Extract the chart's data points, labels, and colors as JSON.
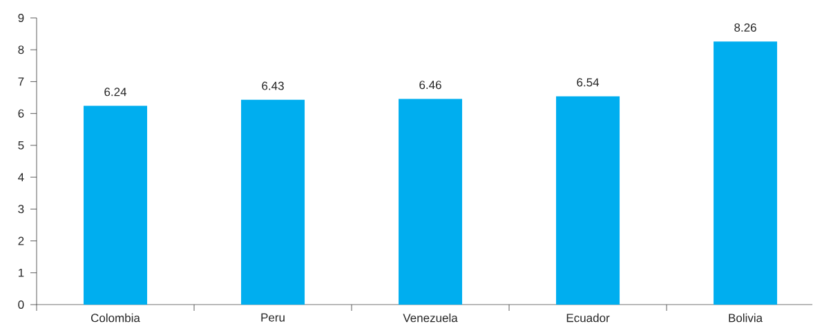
{
  "chart_data": {
    "type": "bar",
    "categories": [
      "Colombia",
      "Peru",
      "Venezuela",
      "Ecuador",
      "Bolivia"
    ],
    "values": [
      6.24,
      6.43,
      6.46,
      6.54,
      8.26
    ],
    "color": "#00aeef",
    "ylim": [
      0,
      9
    ],
    "yticks": [
      0,
      1,
      2,
      3,
      4,
      5,
      6,
      7,
      8,
      9
    ],
    "data_labels": true,
    "grid": false
  }
}
